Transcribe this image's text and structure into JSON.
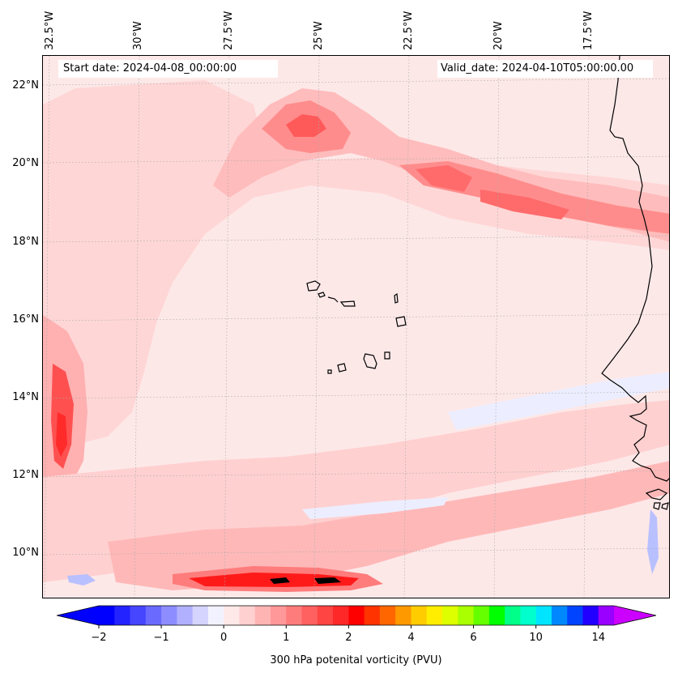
{
  "header": {
    "start_date": "Start date: 2024-04-08_00:00:00",
    "valid_date": "Valid_date: 2024-04-10T05:00:00.00"
  },
  "axes": {
    "longitude_labels": [
      "32.5°W",
      "30°W",
      "27.5°W",
      "25°W",
      "22.5°W",
      "20°W",
      "17.5°W"
    ],
    "latitude_labels": [
      "22°N",
      "20°N",
      "18°N",
      "16°N",
      "14°N",
      "12°N",
      "10°N"
    ],
    "lat_values": [
      22,
      20,
      18,
      16,
      14,
      12,
      10
    ],
    "lon_values": [
      -32.5,
      -30,
      -27.5,
      -25,
      -22.5,
      -20,
      -17.5
    ]
  },
  "colorbar": {
    "title": "300 hPa potenital vorticity (PVU)",
    "tick_labels": [
      "−2",
      "−1",
      "0",
      "1",
      "2",
      "4",
      "6",
      "10",
      "14"
    ],
    "colors": [
      "#0000ff",
      "#2323ff",
      "#4646ff",
      "#6a6aff",
      "#8d8dff",
      "#b0b0ff",
      "#d4d4ff",
      "#f2f2ff",
      "#ffe8e8",
      "#ffd0d0",
      "#ffb4b4",
      "#ff9898",
      "#ff7c7c",
      "#ff6060",
      "#ff4444",
      "#ff2828",
      "#ff0000",
      "#ff3300",
      "#ff6600",
      "#ff9900",
      "#ffcc00",
      "#ffee00",
      "#ddff00",
      "#aaff00",
      "#66ff00",
      "#00ff00",
      "#00ff88",
      "#00ffcc",
      "#00e5ff",
      "#0088ff",
      "#0044ff",
      "#2200ff",
      "#9900ff"
    ],
    "extend_low_color": "#0000ff",
    "extend_high_color": "#cc00ff"
  },
  "colors": {
    "background_pv": "#fde8e8",
    "light_pv": "#ffd0d0",
    "mid_pv": "#ffb0b0",
    "high_pv": "#ff7c7c",
    "peak_pv": "#ff2a2a",
    "max_pv": "#000000",
    "negative_pv": "#e9ecff",
    "coastline": "#000000"
  }
}
